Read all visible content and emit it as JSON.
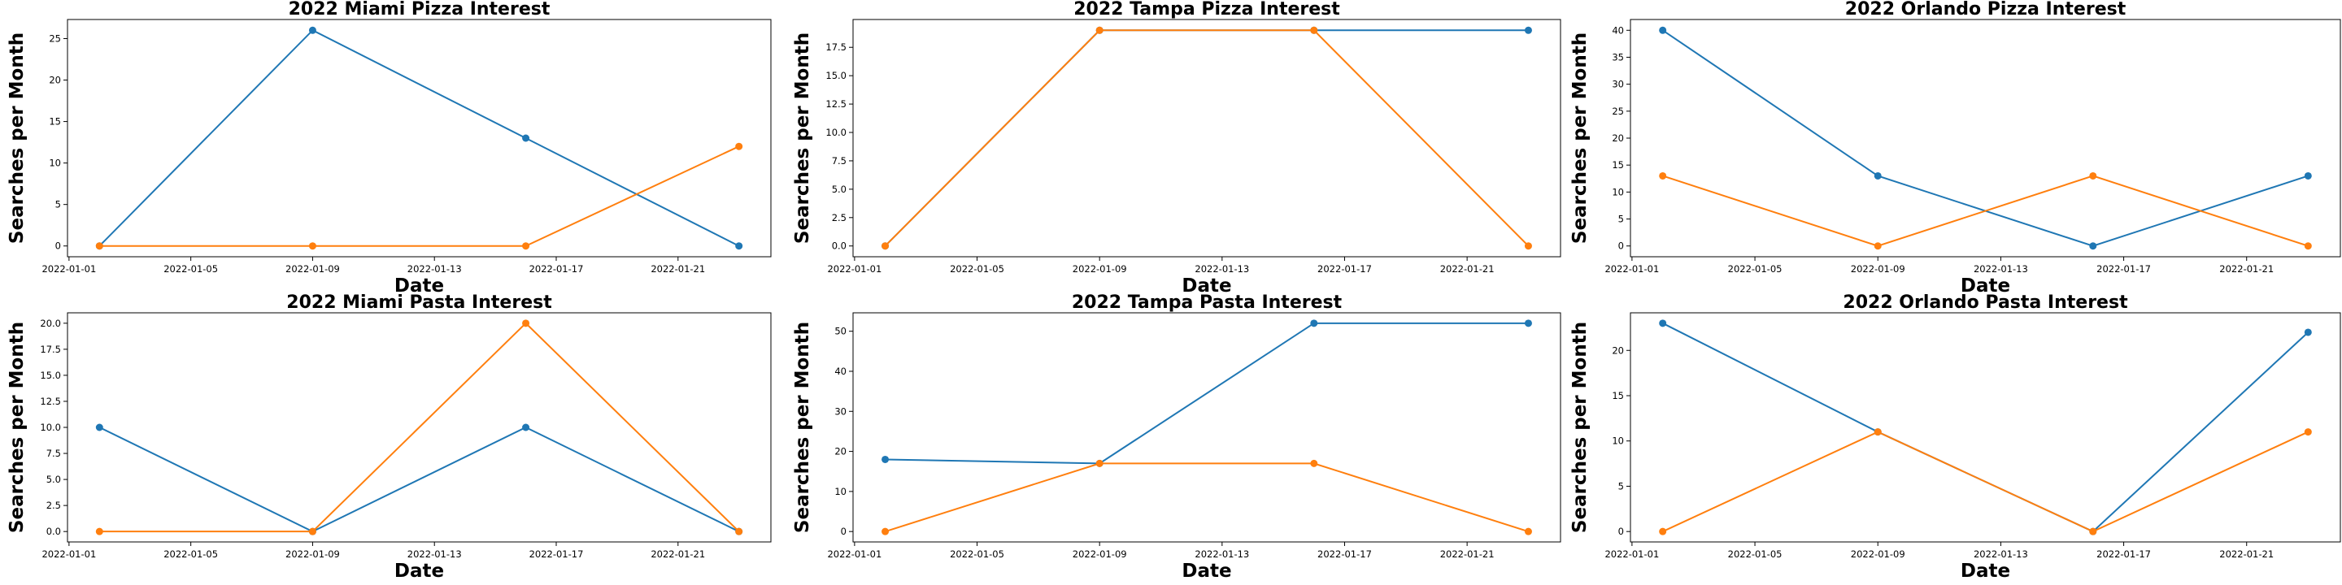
{
  "colors": {
    "series1": "#1f77b4",
    "series2": "#ff7f0e"
  },
  "chart_data": [
    {
      "type": "line",
      "title": "2022 Miami Pizza Interest",
      "xlabel": "Date",
      "ylabel": "Searches per Month",
      "x": [
        "2022-01-02",
        "2022-01-09",
        "2022-01-16",
        "2022-01-23"
      ],
      "xticks": [
        "2022-01-01",
        "2022-01-05",
        "2022-01-09",
        "2022-01-13",
        "2022-01-17",
        "2022-01-21"
      ],
      "yticks": [
        0,
        5,
        10,
        15,
        20,
        25
      ],
      "ylim": [
        -1.3,
        27.3
      ],
      "series": [
        {
          "values": [
            0,
            26,
            13,
            0
          ]
        },
        {
          "values": [
            0,
            0,
            0,
            12
          ]
        }
      ]
    },
    {
      "type": "line",
      "title": "2022 Tampa Pizza Interest",
      "xlabel": "Date",
      "ylabel": "Searches per Month",
      "x": [
        "2022-01-02",
        "2022-01-09",
        "2022-01-16",
        "2022-01-23"
      ],
      "xticks": [
        "2022-01-01",
        "2022-01-05",
        "2022-01-09",
        "2022-01-13",
        "2022-01-17",
        "2022-01-21"
      ],
      "yticks": [
        0.0,
        2.5,
        5.0,
        7.5,
        10.0,
        12.5,
        15.0,
        17.5
      ],
      "ylim": [
        -0.95,
        19.95
      ],
      "series": [
        {
          "values": [
            0,
            19,
            19,
            19
          ]
        },
        {
          "values": [
            0,
            19,
            19,
            0
          ]
        }
      ]
    },
    {
      "type": "line",
      "title": "2022 Orlando Pizza Interest",
      "xlabel": "Date",
      "ylabel": "Searches per Month",
      "x": [
        "2022-01-02",
        "2022-01-09",
        "2022-01-16",
        "2022-01-23"
      ],
      "xticks": [
        "2022-01-01",
        "2022-01-05",
        "2022-01-09",
        "2022-01-13",
        "2022-01-17",
        "2022-01-21"
      ],
      "yticks": [
        0,
        5,
        10,
        15,
        20,
        25,
        30,
        35,
        40
      ],
      "ylim": [
        -2,
        42
      ],
      "series": [
        {
          "values": [
            40,
            13,
            0,
            13
          ]
        },
        {
          "values": [
            13,
            0,
            13,
            0
          ]
        }
      ]
    },
    {
      "type": "line",
      "title": "2022 Miami Pasta Interest",
      "xlabel": "Date",
      "ylabel": "Searches per Month",
      "x": [
        "2022-01-02",
        "2022-01-09",
        "2022-01-16",
        "2022-01-23"
      ],
      "xticks": [
        "2022-01-01",
        "2022-01-05",
        "2022-01-09",
        "2022-01-13",
        "2022-01-17",
        "2022-01-21"
      ],
      "yticks": [
        0.0,
        2.5,
        5.0,
        7.5,
        10.0,
        12.5,
        15.0,
        17.5,
        20.0
      ],
      "ylim": [
        -1,
        21
      ],
      "series": [
        {
          "values": [
            10,
            0,
            10,
            0
          ]
        },
        {
          "values": [
            0,
            0,
            20,
            0
          ]
        }
      ]
    },
    {
      "type": "line",
      "title": "2022 Tampa Pasta Interest",
      "xlabel": "Date",
      "ylabel": "Searches per Month",
      "x": [
        "2022-01-02",
        "2022-01-09",
        "2022-01-16",
        "2022-01-23"
      ],
      "xticks": [
        "2022-01-01",
        "2022-01-05",
        "2022-01-09",
        "2022-01-13",
        "2022-01-17",
        "2022-01-21"
      ],
      "yticks": [
        0,
        10,
        20,
        30,
        40,
        50
      ],
      "ylim": [
        -2.6,
        54.6
      ],
      "series": [
        {
          "values": [
            18,
            17,
            52,
            52
          ]
        },
        {
          "values": [
            0,
            17,
            17,
            0
          ]
        }
      ]
    },
    {
      "type": "line",
      "title": "2022 Orlando Pasta Interest",
      "xlabel": "Date",
      "ylabel": "Searches per Month",
      "x": [
        "2022-01-02",
        "2022-01-09",
        "2022-01-16",
        "2022-01-23"
      ],
      "xticks": [
        "2022-01-01",
        "2022-01-05",
        "2022-01-09",
        "2022-01-13",
        "2022-01-17",
        "2022-01-21"
      ],
      "yticks": [
        0,
        5,
        10,
        15,
        20
      ],
      "ylim": [
        -1.15,
        24.15
      ],
      "series": [
        {
          "values": [
            23,
            11,
            0,
            22
          ]
        },
        {
          "values": [
            0,
            11,
            0,
            11
          ]
        }
      ]
    }
  ]
}
